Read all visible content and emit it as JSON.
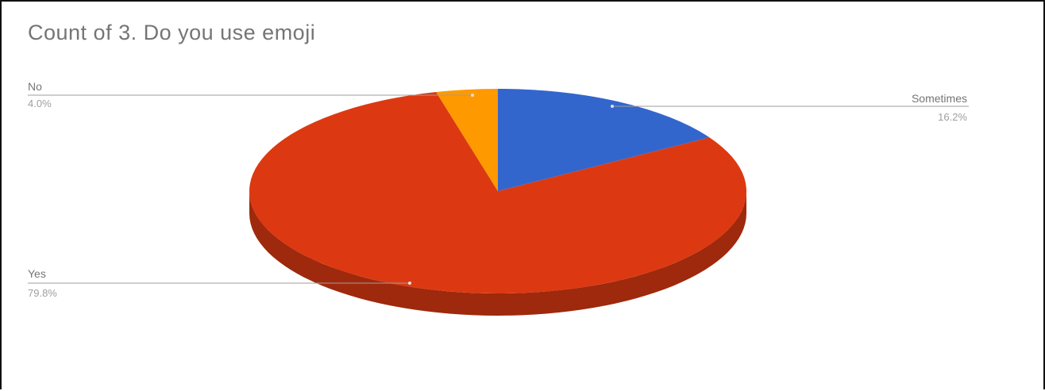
{
  "chart_data": {
    "type": "pie",
    "title": "Count of 3. Do you use emoji",
    "slices": [
      {
        "label": "Sometimes",
        "percent_label": "16.2%",
        "value": 16.2,
        "color": "#3366cc"
      },
      {
        "label": "Yes",
        "percent_label": "79.8%",
        "value": 79.8,
        "color": "#dc3912"
      },
      {
        "label": "No",
        "percent_label": "4.0%",
        "value": 4.0,
        "color": "#ff9900"
      }
    ],
    "is_3d": true,
    "start_angle": "top",
    "direction": "clockwise",
    "legend": "callout labels"
  }
}
